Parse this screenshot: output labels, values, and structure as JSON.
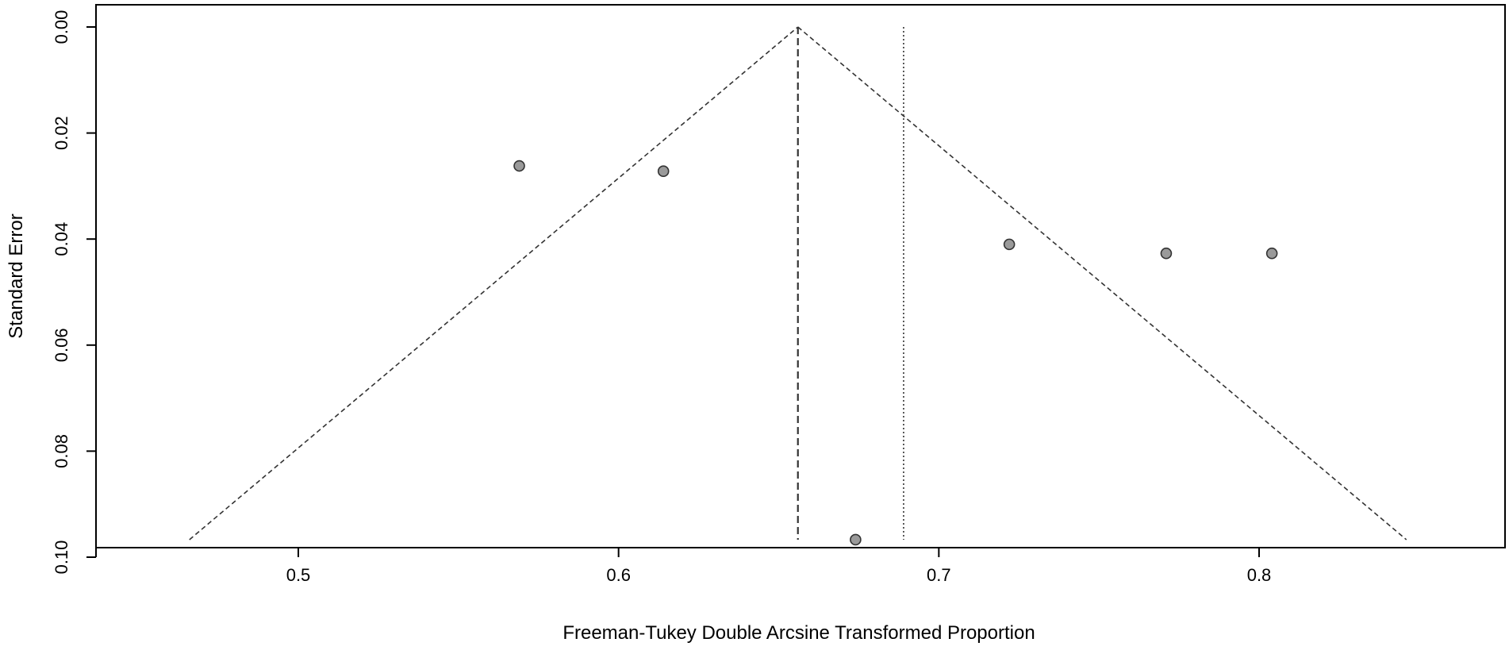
{
  "chart_data": {
    "type": "scatter",
    "title": "",
    "xlabel": "Freeman-Tukey Double Arcsine Transformed Proportion",
    "ylabel": "Standard Error",
    "xlim": [
      0.437,
      0.885
    ],
    "ylim": [
      0.1,
      0.0
    ],
    "y_axis_inverted": true,
    "grid": false,
    "legend": "none",
    "x_ticks": [
      {
        "value": 0.5,
        "label": "0.5"
      },
      {
        "value": 0.6,
        "label": "0.6"
      },
      {
        "value": 0.7,
        "label": "0.7"
      },
      {
        "value": 0.8,
        "label": "0.8"
      }
    ],
    "y_ticks": [
      {
        "value": 0.0,
        "label": "0.00"
      },
      {
        "value": 0.02,
        "label": "0.02"
      },
      {
        "value": 0.04,
        "label": "0.04"
      },
      {
        "value": 0.06,
        "label": "0.06"
      },
      {
        "value": 0.08,
        "label": "0.08"
      },
      {
        "value": 0.1,
        "label": "0.10"
      }
    ],
    "points": [
      {
        "x": 0.569,
        "y": 0.0262
      },
      {
        "x": 0.614,
        "y": 0.0272
      },
      {
        "x": 0.722,
        "y": 0.041
      },
      {
        "x": 0.771,
        "y": 0.0427
      },
      {
        "x": 0.804,
        "y": 0.0427
      },
      {
        "x": 0.674,
        "y": 0.0967
      }
    ],
    "funnel": {
      "apex": {
        "x": 0.656,
        "y": 0.0
      },
      "bottom_left": {
        "x": 0.466,
        "y": 0.0967
      },
      "bottom_right": {
        "x": 0.846,
        "y": 0.0967
      },
      "style": "dashed"
    },
    "reference_lines": [
      {
        "name": "summary-estimate-line",
        "x": 0.656,
        "y_from": 0.0,
        "y_to": 0.0967,
        "style": "dashed"
      },
      {
        "name": "adjusted-estimate-line",
        "x": 0.689,
        "y_from": 0.0,
        "y_to": 0.0967,
        "style": "dotted"
      }
    ],
    "colors": {
      "point_fill": "#9a9a9a",
      "point_stroke": "#333333",
      "line": "#333333",
      "axis": "#000000"
    }
  }
}
